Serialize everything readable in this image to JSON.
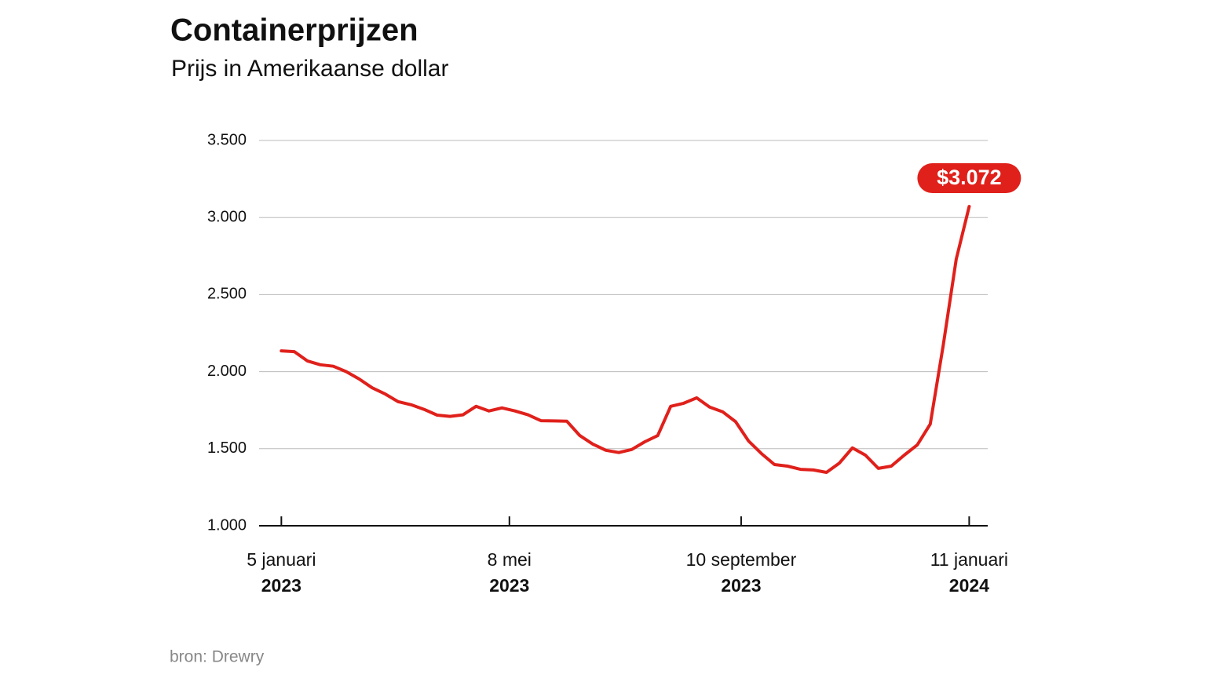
{
  "chart_data": {
    "type": "line",
    "title": "Containerprijzen",
    "subtitle": "Prijs in Amerikaanse dollar",
    "source": "bron: Drewry",
    "x": [
      "2023-01-05",
      "2023-01-12",
      "2023-01-19",
      "2023-01-26",
      "2023-02-02",
      "2023-02-09",
      "2023-02-16",
      "2023-02-23",
      "2023-03-02",
      "2023-03-09",
      "2023-03-16",
      "2023-03-23",
      "2023-03-30",
      "2023-04-06",
      "2023-04-13",
      "2023-04-20",
      "2023-04-27",
      "2023-05-04",
      "2023-05-11",
      "2023-05-18",
      "2023-05-25",
      "2023-06-01",
      "2023-06-08",
      "2023-06-15",
      "2023-06-22",
      "2023-06-29",
      "2023-07-06",
      "2023-07-13",
      "2023-07-20",
      "2023-07-27",
      "2023-08-03",
      "2023-08-10",
      "2023-08-17",
      "2023-08-24",
      "2023-08-31",
      "2023-09-07",
      "2023-09-14",
      "2023-09-21",
      "2023-09-28",
      "2023-10-05",
      "2023-10-12",
      "2023-10-19",
      "2023-10-26",
      "2023-11-02",
      "2023-11-09",
      "2023-11-16",
      "2023-11-23",
      "2023-11-30",
      "2023-12-07",
      "2023-12-14",
      "2023-12-21",
      "2023-12-28",
      "2024-01-04",
      "2024-01-11"
    ],
    "series": [
      {
        "name": "Containerprijs",
        "color": "#e0201b",
        "values": [
          2135,
          2130,
          2070,
          2045,
          2035,
          2000,
          1952,
          1895,
          1855,
          1805,
          1785,
          1755,
          1718,
          1710,
          1720,
          1775,
          1745,
          1765,
          1745,
          1720,
          1682,
          1680,
          1678,
          1585,
          1530,
          1490,
          1475,
          1495,
          1545,
          1585,
          1775,
          1795,
          1830,
          1770,
          1740,
          1675,
          1550,
          1468,
          1397,
          1387,
          1366,
          1362,
          1346,
          1407,
          1505,
          1458,
          1372,
          1387,
          1458,
          1525,
          1660,
          2170,
          2730,
          3072
        ],
        "last_label": "$3.072"
      }
    ],
    "xlim": [
      "2022-12-24",
      "2024-01-21"
    ],
    "xticks": [
      {
        "value": "2023-01-05",
        "label": [
          "5 januari",
          "2023"
        ]
      },
      {
        "value": "2023-05-08",
        "label": [
          "8 mei",
          "2023"
        ]
      },
      {
        "value": "2023-09-10",
        "label": [
          "10 september",
          "2023"
        ]
      },
      {
        "value": "2024-01-11",
        "label": [
          "11 januari",
          "2024"
        ]
      }
    ],
    "ylim": [
      1000,
      3500
    ],
    "yticks": [
      {
        "value": 1000,
        "label": "1.000"
      },
      {
        "value": 1500,
        "label": "1.500"
      },
      {
        "value": 2000,
        "label": "2.000"
      },
      {
        "value": 2500,
        "label": "2.500"
      },
      {
        "value": 3000,
        "label": "3.000"
      },
      {
        "value": 3500,
        "label": "3.500"
      }
    ],
    "grid": true
  }
}
